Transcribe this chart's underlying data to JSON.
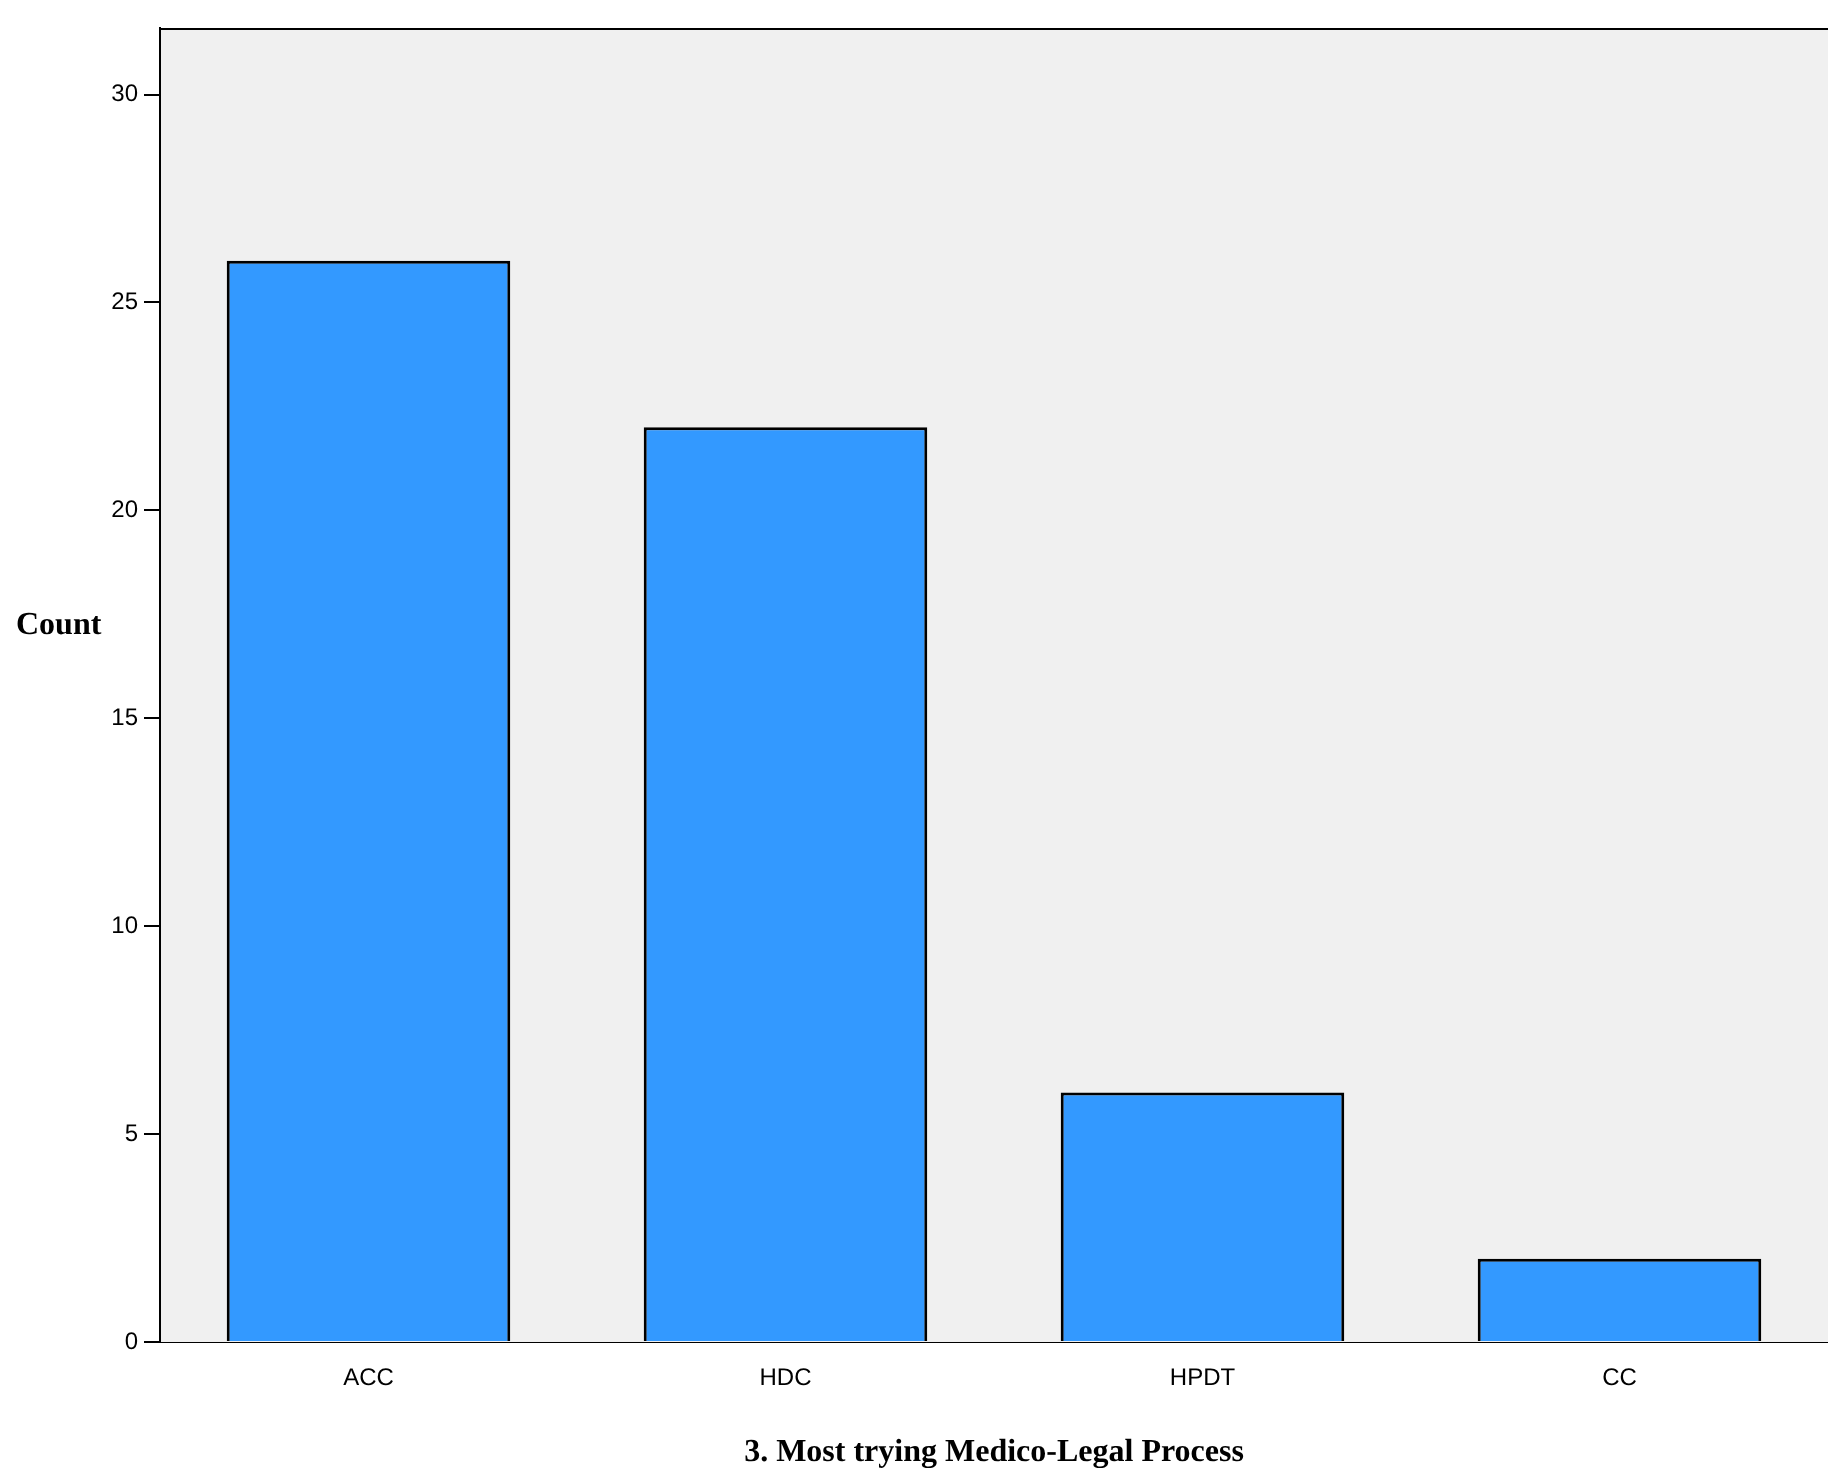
{
  "chart_data": {
    "type": "bar",
    "xlabel": "3. Most trying Medico-Legal Process",
    "ylabel": "Count",
    "categories": [
      "ACC",
      "HDC",
      "HPDT",
      "CC"
    ],
    "values": [
      26,
      22,
      6,
      2
    ],
    "color": "#3399ff",
    "ylim": [
      0,
      31.6
    ],
    "yticks": [
      0,
      5,
      10,
      15,
      20,
      25,
      30
    ],
    "grid": false
  }
}
